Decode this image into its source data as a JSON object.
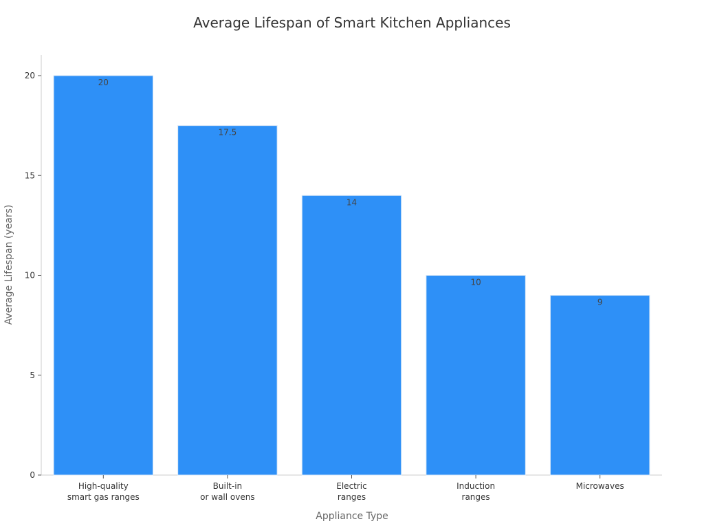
{
  "chart_data": {
    "type": "bar",
    "title": "Average Lifespan of Smart Kitchen Appliances",
    "xlabel": "Appliance Type",
    "ylabel": "Average Lifespan (years)",
    "categories": [
      [
        "High-quality",
        "smart gas ranges"
      ],
      [
        "Built-in",
        "or wall ovens"
      ],
      [
        "Electric",
        "ranges"
      ],
      [
        "Induction",
        "ranges"
      ],
      [
        "Microwaves"
      ]
    ],
    "values": [
      20,
      17.5,
      14,
      10,
      9
    ],
    "data_labels": [
      "20",
      "17.5",
      "14",
      "10",
      "9"
    ],
    "yticks": [
      0,
      5,
      10,
      15,
      20
    ],
    "ylim": [
      0,
      21
    ],
    "grid": false,
    "bar_color": "#2e90f7"
  }
}
